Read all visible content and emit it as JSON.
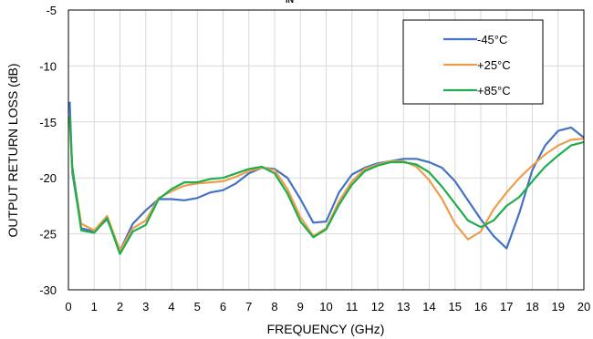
{
  "chart_data": {
    "type": "line",
    "title": "",
    "title_fragment": "IN",
    "xlabel": "FREQUENCY (GHz)",
    "ylabel": "OUTPUT RETURN LOSS (dB)",
    "xlim": [
      0,
      20
    ],
    "ylim": [
      -30,
      -5
    ],
    "xticks": [
      0,
      1,
      2,
      3,
      4,
      5,
      6,
      7,
      8,
      9,
      10,
      11,
      12,
      13,
      14,
      15,
      16,
      17,
      18,
      19,
      20
    ],
    "yticks": [
      -30,
      -25,
      -20,
      -15,
      -10,
      -5
    ],
    "grid": true,
    "legend": "top-right",
    "series": [
      {
        "name": "-45°C",
        "color": "#4472C4",
        "x": [
          0.05,
          0.15,
          0.5,
          1,
          1.5,
          2,
          2.5,
          3,
          3.5,
          4,
          4.5,
          5,
          5.5,
          6,
          6.5,
          7,
          7.5,
          8,
          8.5,
          9,
          9.5,
          10,
          10.5,
          11,
          11.5,
          12,
          12.5,
          13,
          13.5,
          14,
          14.5,
          15,
          15.5,
          16,
          16.5,
          17,
          17.5,
          18,
          18.5,
          19,
          19.5,
          20
        ],
        "y": [
          -13.2,
          -19.5,
          -24.5,
          -24.8,
          -23.7,
          -26.5,
          -24.1,
          -22.9,
          -21.9,
          -21.9,
          -22.0,
          -21.8,
          -21.3,
          -21.1,
          -20.5,
          -19.6,
          -19.1,
          -19.2,
          -20.0,
          -21.9,
          -24.0,
          -23.9,
          -21.3,
          -19.7,
          -19.1,
          -18.7,
          -18.5,
          -18.3,
          -18.3,
          -18.6,
          -19.1,
          -20.3,
          -22.0,
          -23.7,
          -25.2,
          -26.3,
          -23.1,
          -19.3,
          -17.1,
          -15.8,
          -15.5,
          -16.4
        ]
      },
      {
        "name": "+25°C",
        "color": "#ED9E4C",
        "x": [
          0.05,
          0.15,
          0.5,
          1,
          1.5,
          2,
          2.5,
          3,
          3.5,
          4,
          4.5,
          5,
          5.5,
          6,
          6.5,
          7,
          7.5,
          8,
          8.5,
          9,
          9.5,
          10,
          10.5,
          11,
          11.5,
          12,
          12.5,
          13,
          13.5,
          14,
          14.5,
          15,
          15.5,
          16,
          16.5,
          17,
          17.5,
          18,
          18.5,
          19,
          19.5,
          20
        ],
        "y": [
          -14.8,
          -19.2,
          -24.1,
          -24.7,
          -23.4,
          -26.5,
          -24.5,
          -23.8,
          -21.8,
          -21.2,
          -20.7,
          -20.5,
          -20.4,
          -20.3,
          -19.9,
          -19.4,
          -19.1,
          -19.3,
          -21.0,
          -23.5,
          -25.2,
          -24.5,
          -22.1,
          -20.3,
          -19.2,
          -18.8,
          -18.5,
          -18.5,
          -19.0,
          -20.2,
          -21.9,
          -24.1,
          -25.5,
          -24.8,
          -22.8,
          -21.3,
          -20.0,
          -18.9,
          -17.9,
          -17.1,
          -16.6,
          -16.5
        ]
      },
      {
        "name": "+85°C",
        "color": "#1FAE4B",
        "x": [
          0.05,
          0.15,
          0.5,
          1,
          1.5,
          2,
          2.5,
          3,
          3.5,
          4,
          4.5,
          5,
          5.5,
          6,
          6.5,
          7,
          7.5,
          8,
          8.5,
          9,
          9.5,
          10,
          10.5,
          11,
          11.5,
          12,
          12.5,
          13,
          13.5,
          14,
          14.5,
          15,
          15.5,
          16,
          16.5,
          17,
          17.5,
          18,
          18.5,
          19,
          19.5,
          20
        ],
        "y": [
          -14.5,
          -19.0,
          -24.7,
          -24.9,
          -23.6,
          -26.8,
          -24.8,
          -24.2,
          -21.9,
          -21.0,
          -20.4,
          -20.4,
          -20.1,
          -20.0,
          -19.6,
          -19.2,
          -19.0,
          -19.6,
          -21.4,
          -23.9,
          -25.3,
          -24.6,
          -22.4,
          -20.6,
          -19.4,
          -18.9,
          -18.6,
          -18.6,
          -18.8,
          -19.5,
          -20.8,
          -22.3,
          -23.8,
          -24.4,
          -23.8,
          -22.5,
          -21.7,
          -20.3,
          -19.0,
          -18.0,
          -17.1,
          -16.8
        ]
      }
    ]
  }
}
